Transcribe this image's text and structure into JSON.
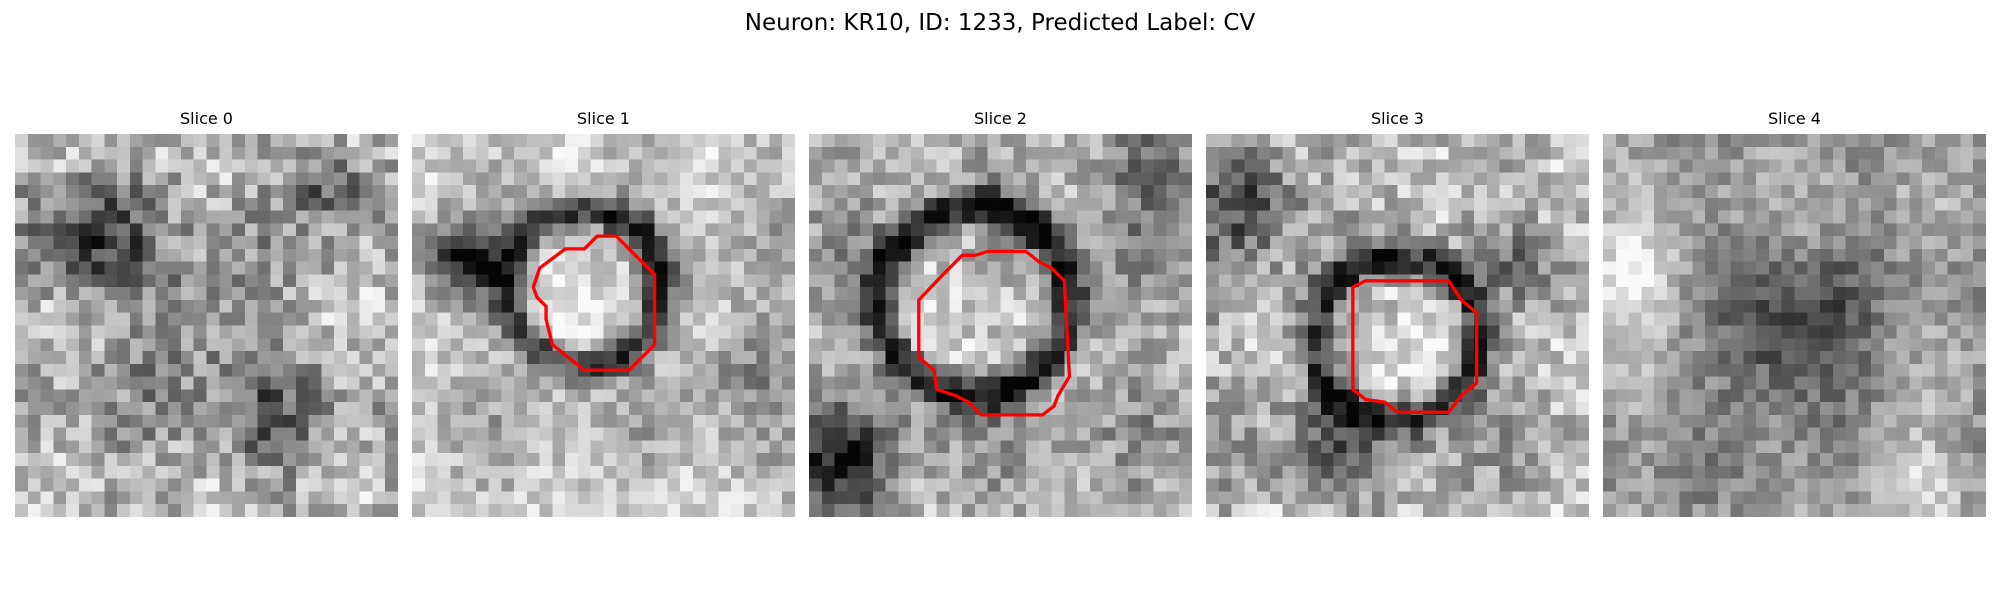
{
  "figure": {
    "title": "Neuron: KR10, ID: 1233, Predicted Label: CV"
  },
  "panels": [
    {
      "title": "Slice 0",
      "has_contour": false
    },
    {
      "title": "Slice 1",
      "has_contour": true
    },
    {
      "title": "Slice 2",
      "has_contour": true
    },
    {
      "title": "Slice 3",
      "has_contour": true
    },
    {
      "title": "Slice 4",
      "has_contour": false
    }
  ],
  "colors": {
    "contour": "#ff0000",
    "background": "#ffffff"
  },
  "colormap": "grayscale"
}
